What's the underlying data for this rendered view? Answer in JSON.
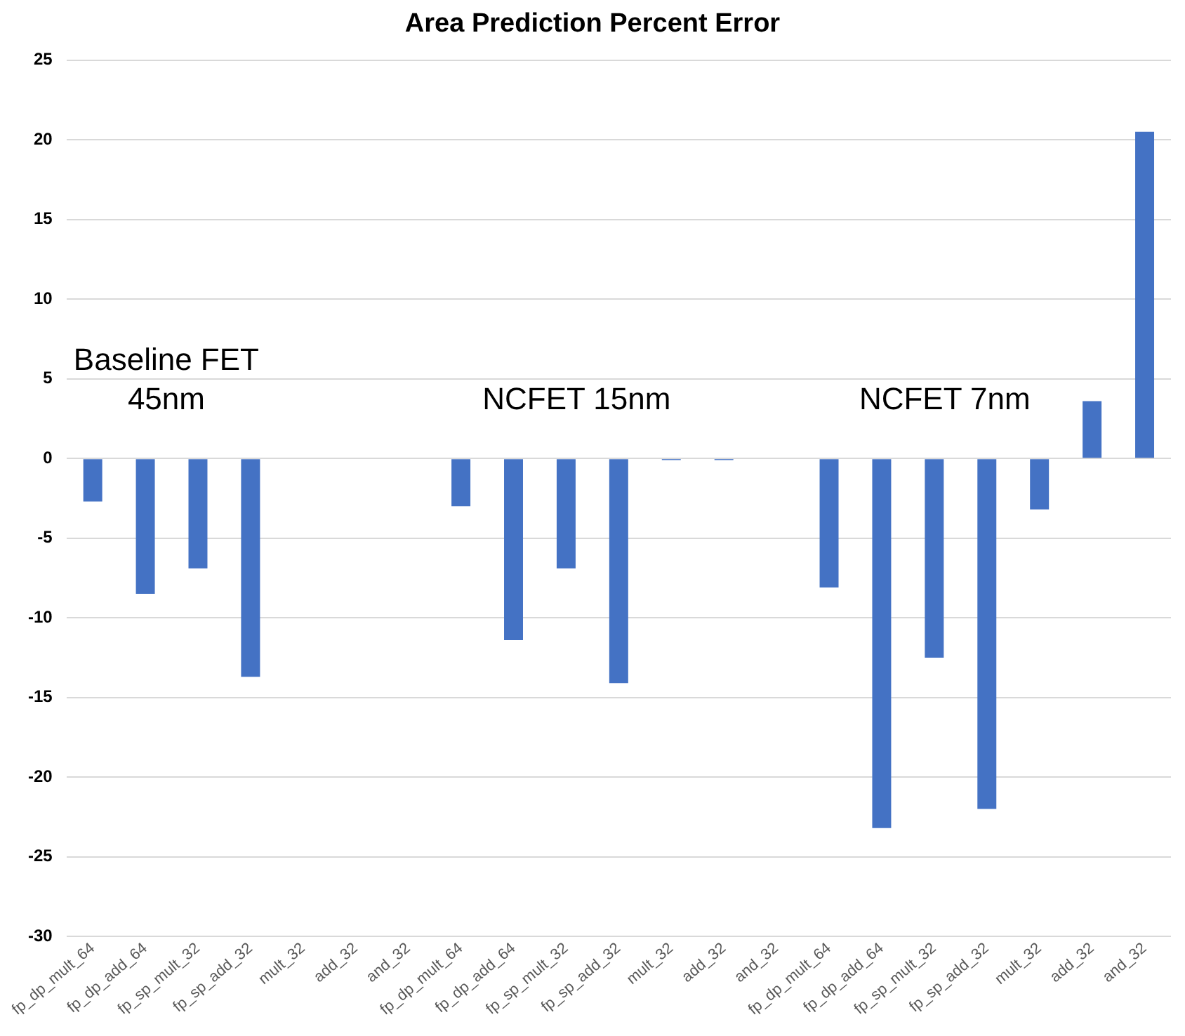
{
  "chart_data": {
    "type": "bar",
    "title": "Area Prediction Percent Error",
    "categories": [
      "fp_dp_mult_64",
      "fp_dp_add_64",
      "fp_sp_mult_32",
      "fp_sp_add_32",
      "mult_32",
      "add_32",
      "and_32",
      "fp_dp_mult_64",
      "fp_dp_add_64",
      "fp_sp_mult_32",
      "fp_sp_add_32",
      "mult_32",
      "add_32",
      "and_32",
      "fp_dp_mult_64",
      "fp_dp_add_64",
      "fp_sp_mult_32",
      "fp_sp_add_32",
      "mult_32",
      "add_32",
      "and_32"
    ],
    "values": [
      -2.7,
      -8.5,
      -6.9,
      -13.7,
      0,
      0,
      0,
      -3.0,
      -11.4,
      -6.9,
      -14.1,
      -0.1,
      -0.1,
      0,
      -8.1,
      -23.2,
      -12.5,
      -22.0,
      -3.2,
      3.6,
      20.5
    ],
    "color": "#4472c4",
    "ylim": [
      -30,
      25
    ],
    "yticks": [
      -30,
      -25,
      -20,
      -15,
      -10,
      -5,
      0,
      5,
      10,
      15,
      20,
      25
    ],
    "grid": "y",
    "legend": false,
    "annotations": [
      "Baseline FET 45nm",
      "NCFET 15nm",
      "NCFET 7nm"
    ]
  }
}
